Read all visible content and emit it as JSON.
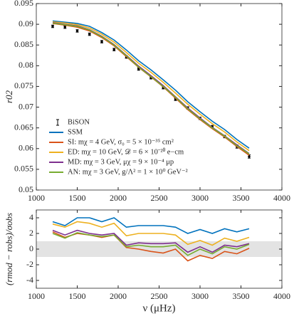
{
  "chart_data": [
    {
      "type": "line",
      "ylabel": "r02",
      "x": [
        1200,
        1350,
        1500,
        1650,
        1800,
        1950,
        2100,
        2250,
        2400,
        2550,
        2700,
        2850,
        3000,
        3150,
        3300,
        3450,
        3600
      ],
      "xlim": [
        1000,
        4000
      ],
      "xticks": [
        1000,
        1500,
        2000,
        2500,
        3000,
        3500,
        4000
      ],
      "ylim": [
        0.05,
        0.095
      ],
      "yticks": [
        0.05,
        0.055,
        0.06,
        0.065,
        0.07,
        0.075,
        0.08,
        0.085,
        0.09,
        0.095
      ],
      "legend": "lower left",
      "series": [
        {
          "name": "BiSON",
          "color": "#000000",
          "values": [
            0.0895,
            0.0893,
            0.0884,
            0.0876,
            0.0858,
            0.0839,
            0.0821,
            0.0792,
            0.0771,
            0.0747,
            0.0719,
            0.0698,
            0.0673,
            0.0653,
            0.0629,
            0.0605,
            0.0581
          ],
          "errors": [
            0.0003,
            0.0003,
            0.0003,
            0.0003,
            0.0003,
            0.0003,
            0.0003,
            0.0003,
            0.0003,
            0.0003,
            0.0003,
            0.0003,
            0.0003,
            0.0003,
            0.0003,
            0.0004,
            0.0004
          ]
        },
        {
          "name": "SSM",
          "color": "#0072bd",
          "values": [
            0.0908,
            0.0905,
            0.0902,
            0.0895,
            0.088,
            0.0862,
            0.0838,
            0.0812,
            0.079,
            0.0766,
            0.0741,
            0.0713,
            0.0689,
            0.0666,
            0.0646,
            0.0622,
            0.0601
          ]
        },
        {
          "name": "SI: mχ = 4 GeV, σ₀ = 5 × 10⁻³⁵ cm²",
          "color": "#d95319",
          "values": [
            0.0902,
            0.0898,
            0.0893,
            0.0884,
            0.0868,
            0.0848,
            0.0822,
            0.0796,
            0.0773,
            0.0749,
            0.0722,
            0.0694,
            0.067,
            0.0648,
            0.0628,
            0.0605,
            0.0584
          ]
        },
        {
          "name": "ED: mχ = 10 GeV, 𝒟 = 6 × 10⁻²⁰ e−cm",
          "color": "#edb120",
          "values": [
            0.0906,
            0.0903,
            0.0899,
            0.0891,
            0.0876,
            0.0857,
            0.0832,
            0.0806,
            0.0784,
            0.076,
            0.0734,
            0.0707,
            0.0683,
            0.066,
            0.064,
            0.0616,
            0.0595
          ]
        },
        {
          "name": "MD: mχ = 3 GeV, μχ = 9 × 10⁻⁴ μp",
          "color": "#7e2f8e",
          "values": [
            0.0904,
            0.09,
            0.0896,
            0.0887,
            0.0871,
            0.0851,
            0.0825,
            0.0799,
            0.0776,
            0.0752,
            0.0725,
            0.0698,
            0.0674,
            0.0651,
            0.0631,
            0.0609,
            0.0588
          ]
        },
        {
          "name": "AN: mχ = 3 GeV, g/Λ² = 1 × 10⁰ GeV⁻²",
          "color": "#77ac30",
          "values": [
            0.0903,
            0.0899,
            0.0895,
            0.0886,
            0.087,
            0.085,
            0.0824,
            0.0797,
            0.0774,
            0.075,
            0.0724,
            0.0696,
            0.0672,
            0.065,
            0.063,
            0.0607,
            0.0587
          ]
        }
      ]
    },
    {
      "type": "line",
      "ylabel": "(rmod − robs)/σobs",
      "xlabel": "ν (μHz)",
      "x": [
        1200,
        1350,
        1500,
        1650,
        1800,
        1950,
        2100,
        2250,
        2400,
        2550,
        2700,
        2850,
        3000,
        3150,
        3300,
        3450,
        3600
      ],
      "xlim": [
        1000,
        4000
      ],
      "xticks": [
        1000,
        1500,
        2000,
        2500,
        3000,
        3500,
        4000
      ],
      "ylim": [
        -5,
        5
      ],
      "yticks": [
        -4,
        -2,
        0,
        2,
        4
      ],
      "shade": [
        -1,
        1
      ],
      "series": [
        {
          "name": "SSM",
          "color": "#0072bd",
          "values": [
            3.5,
            3.0,
            4.0,
            4.0,
            3.5,
            4.0,
            2.8,
            3.0,
            3.0,
            3.0,
            2.8,
            2.0,
            2.5,
            2.0,
            2.6,
            2.2,
            2.6
          ]
        },
        {
          "name": "SI",
          "color": "#d95319",
          "values": [
            2.2,
            1.5,
            2.0,
            1.8,
            1.5,
            1.8,
            0.2,
            0.0,
            -0.3,
            -0.5,
            0.0,
            -1.5,
            -0.8,
            -1.2,
            -0.3,
            -0.6,
            0.1
          ]
        },
        {
          "name": "ED",
          "color": "#edb120",
          "values": [
            3.2,
            2.8,
            3.5,
            3.3,
            2.8,
            3.3,
            1.7,
            2.0,
            2.0,
            2.0,
            1.8,
            0.6,
            1.1,
            0.5,
            1.4,
            1.0,
            1.5
          ]
        },
        {
          "name": "MD",
          "color": "#7e2f8e",
          "values": [
            2.4,
            1.8,
            2.4,
            2.0,
            1.8,
            2.0,
            0.5,
            0.8,
            0.7,
            0.7,
            0.8,
            -0.4,
            0.3,
            -0.4,
            0.5,
            0.3,
            0.7
          ]
        },
        {
          "name": "AN",
          "color": "#77ac30",
          "values": [
            2.0,
            1.4,
            2.1,
            1.8,
            1.6,
            1.8,
            0.3,
            0.5,
            0.3,
            0.3,
            0.5,
            -0.8,
            0.0,
            -0.6,
            0.3,
            0.0,
            0.6
          ]
        }
      ]
    }
  ]
}
